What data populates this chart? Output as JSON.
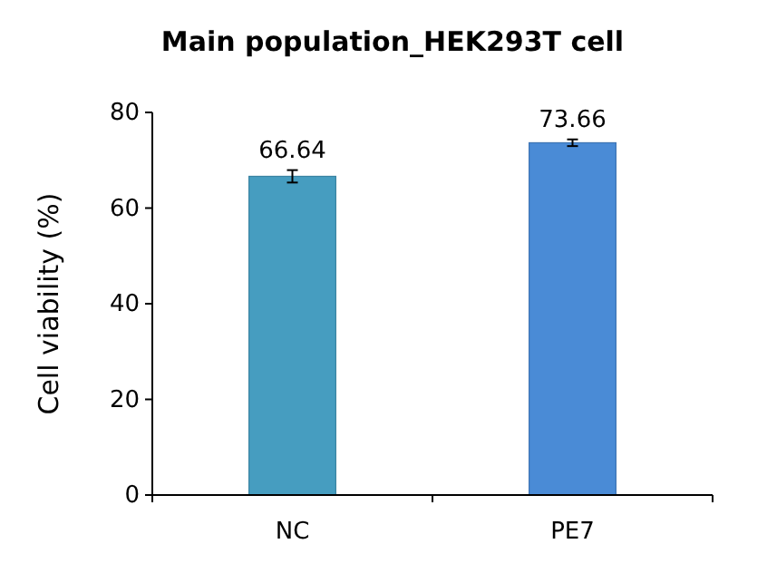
{
  "chart_data": {
    "type": "bar",
    "title": "Main population_HEK293T cell",
    "ylabel": "Cell viability (%)",
    "categories": [
      "NC",
      "PE7"
    ],
    "values": [
      66.64,
      73.66
    ],
    "colors": [
      "#469dc0",
      "#4a8bd6"
    ],
    "errors": [
      1.3,
      0.7
    ],
    "data_labels": true,
    "ylim": [
      0,
      80
    ],
    "yticks": [
      0,
      20,
      40,
      60,
      80
    ],
    "grid": false
  }
}
